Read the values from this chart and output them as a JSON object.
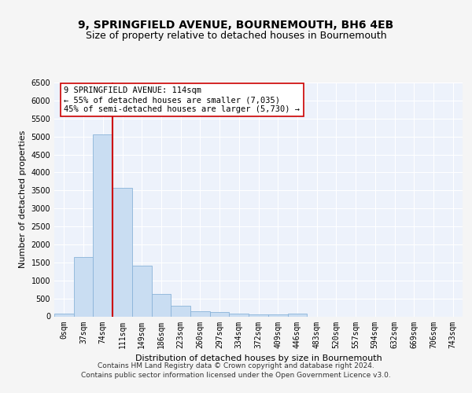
{
  "title": "9, SPRINGFIELD AVENUE, BOURNEMOUTH, BH6 4EB",
  "subtitle": "Size of property relative to detached houses in Bournemouth",
  "xlabel": "Distribution of detached houses by size in Bournemouth",
  "ylabel": "Number of detached properties",
  "categories": [
    "0sqm",
    "37sqm",
    "74sqm",
    "111sqm",
    "149sqm",
    "186sqm",
    "223sqm",
    "260sqm",
    "297sqm",
    "334sqm",
    "372sqm",
    "409sqm",
    "446sqm",
    "483sqm",
    "520sqm",
    "557sqm",
    "594sqm",
    "632sqm",
    "669sqm",
    "706sqm",
    "743sqm"
  ],
  "bar_heights": [
    75,
    1650,
    5060,
    3580,
    1410,
    620,
    290,
    145,
    110,
    75,
    55,
    55,
    75,
    0,
    0,
    0,
    0,
    0,
    0,
    0,
    0
  ],
  "bar_color": "#c9ddf2",
  "bar_edge_color": "#8ab4d9",
  "vline_color": "#cc0000",
  "annotation_text": "9 SPRINGFIELD AVENUE: 114sqm\n← 55% of detached houses are smaller (7,035)\n45% of semi-detached houses are larger (5,730) →",
  "annotation_box_color": "#ffffff",
  "annotation_box_edge": "#cc0000",
  "ylim": [
    0,
    6500
  ],
  "yticks": [
    0,
    500,
    1000,
    1500,
    2000,
    2500,
    3000,
    3500,
    4000,
    4500,
    5000,
    5500,
    6000,
    6500
  ],
  "footer_line1": "Contains HM Land Registry data © Crown copyright and database right 2024.",
  "footer_line2": "Contains public sector information licensed under the Open Government Licence v3.0.",
  "background_color": "#edf2fb",
  "grid_color": "#ffffff",
  "title_fontsize": 10,
  "subtitle_fontsize": 9,
  "axis_fontsize": 8,
  "tick_fontsize": 7,
  "annotation_fontsize": 7.5,
  "footer_fontsize": 6.5
}
